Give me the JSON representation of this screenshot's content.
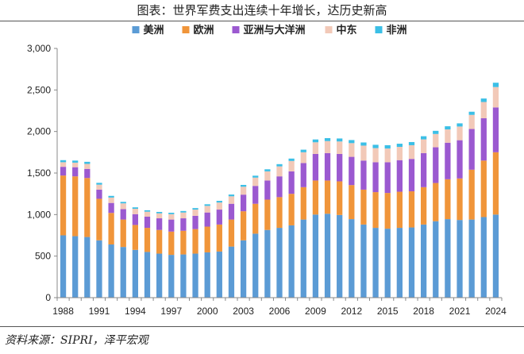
{
  "title": "图表：世界军费支出连续十年增长，达历史新高",
  "source": "资料来源：SIPRI，泽平宏观",
  "colors": {
    "americas": "#5b9bd5",
    "europe": "#f0953a",
    "asia": "#9b59d0",
    "middle_east": "#f2c9b8",
    "africa": "#3bbfe6",
    "axis": "#888888"
  },
  "chart_data": {
    "type": "bar",
    "stacked": true,
    "years": [
      1988,
      1989,
      1990,
      1991,
      1992,
      1993,
      1994,
      1995,
      1996,
      1997,
      1998,
      1999,
      2000,
      2001,
      2002,
      2003,
      2004,
      2005,
      2006,
      2007,
      2008,
      2009,
      2010,
      2011,
      2012,
      2013,
      2014,
      2015,
      2016,
      2017,
      2018,
      2019,
      2020,
      2021,
      2022,
      2023,
      2024
    ],
    "x_tick_labels": [
      "1988",
      "1991",
      "1994",
      "1997",
      "2000",
      "2003",
      "2006",
      "2009",
      "2012",
      "2015",
      "2018",
      "2021",
      "2024"
    ],
    "ylim": [
      0,
      3000
    ],
    "y_ticks": [
      0,
      500,
      1000,
      1500,
      2000,
      2500,
      3000
    ],
    "y_tick_labels": [
      "0",
      "500",
      "1,000",
      "1,500",
      "2,000",
      "2,500",
      "3,000"
    ],
    "legend_position": "top",
    "series": [
      {
        "name": "美洲",
        "color_key": "americas",
        "values": [
          750,
          740,
          730,
          690,
          640,
          610,
          575,
          550,
          530,
          515,
          520,
          530,
          545,
          555,
          615,
          690,
          770,
          815,
          840,
          870,
          940,
          1000,
          1010,
          995,
          945,
          880,
          840,
          830,
          840,
          845,
          880,
          920,
          945,
          935,
          940,
          970,
          1000
        ]
      },
      {
        "name": "欧洲",
        "color_key": "europe",
        "values": [
          720,
          720,
          710,
          500,
          380,
          330,
          300,
          290,
          285,
          280,
          285,
          295,
          310,
          325,
          325,
          350,
          360,
          365,
          370,
          380,
          390,
          410,
          400,
          405,
          410,
          420,
          430,
          430,
          435,
          435,
          450,
          460,
          480,
          500,
          600,
          680,
          750
        ]
      },
      {
        "name": "亚洲与大洋洲",
        "color_key": "asia",
        "values": [
          105,
          110,
          110,
          110,
          120,
          125,
          130,
          135,
          140,
          145,
          150,
          160,
          170,
          180,
          190,
          200,
          215,
          230,
          250,
          270,
          290,
          320,
          330,
          330,
          340,
          350,
          360,
          370,
          380,
          390,
          410,
          430,
          440,
          460,
          490,
          510,
          540
        ]
      },
      {
        "name": "中东",
        "color_key": "middle_east",
        "values": [
          55,
          55,
          60,
          60,
          65,
          70,
          65,
          60,
          60,
          65,
          70,
          75,
          80,
          85,
          90,
          95,
          100,
          110,
          120,
          125,
          130,
          140,
          145,
          150,
          165,
          180,
          170,
          165,
          160,
          165,
          165,
          160,
          160,
          165,
          170,
          195,
          245
        ]
      },
      {
        "name": "非洲",
        "color_key": "africa",
        "values": [
          25,
          25,
          25,
          22,
          20,
          18,
          17,
          17,
          17,
          17,
          18,
          18,
          19,
          20,
          21,
          22,
          23,
          25,
          27,
          29,
          31,
          34,
          35,
          36,
          37,
          38,
          40,
          40,
          38,
          38,
          38,
          38,
          38,
          38,
          38,
          42,
          52
        ]
      }
    ]
  }
}
